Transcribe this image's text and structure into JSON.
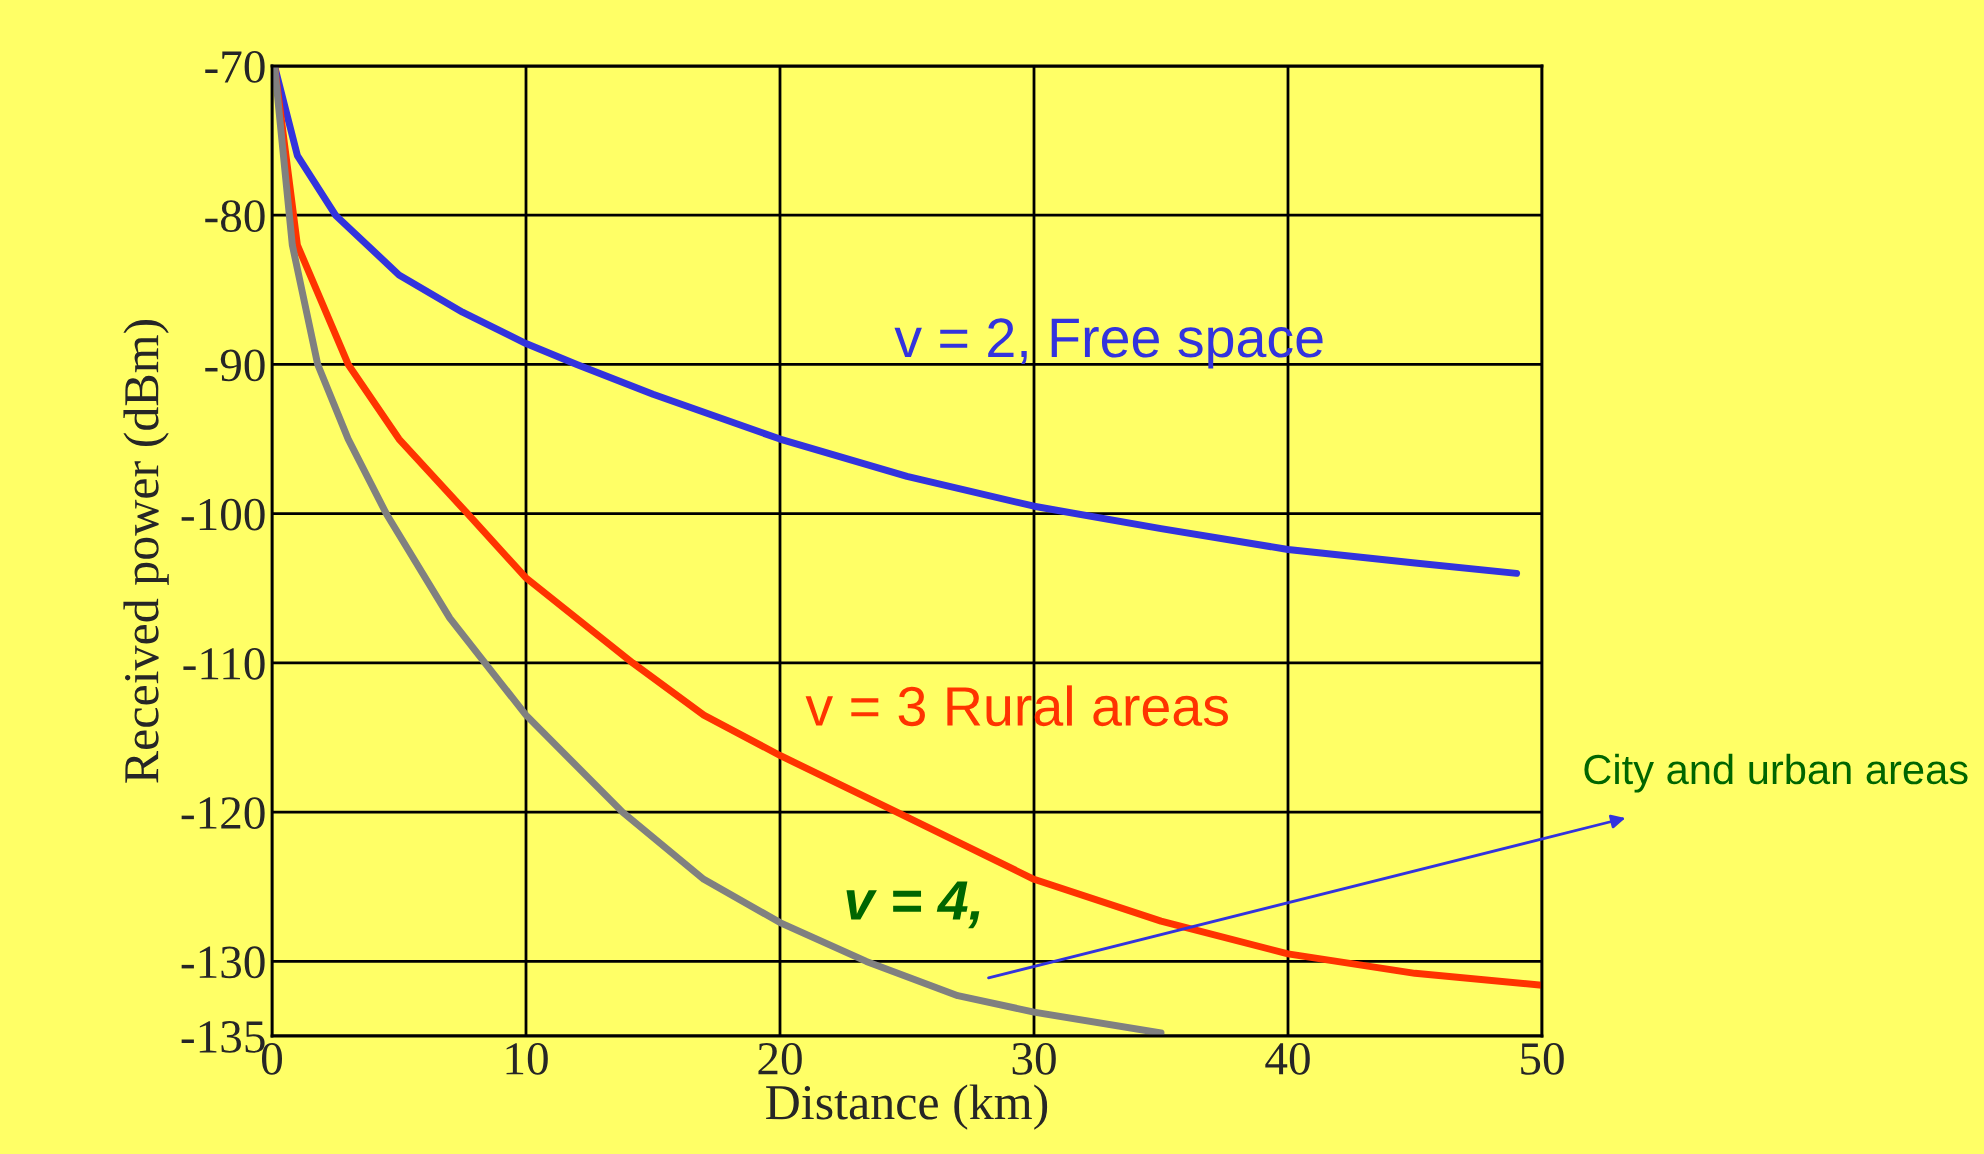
{
  "chart_data": {
    "type": "line",
    "xlabel": "Distance (km)",
    "ylabel": "Received power (dBm)",
    "xlim": [
      0,
      50
    ],
    "xticks": [
      0,
      10,
      20,
      30,
      40,
      50
    ],
    "ylim": [
      -135,
      -70
    ],
    "yticks": [
      -70,
      -80,
      -90,
      -100,
      -110,
      -120,
      -130,
      -135
    ],
    "grid": true,
    "legend": false,
    "series": [
      {
        "name": "v = 2, Free space",
        "color": "#3333dd",
        "x": [
          0.1,
          1,
          2.5,
          5,
          7.5,
          10,
          12,
          15,
          20,
          25,
          30,
          35,
          40,
          45,
          49
        ],
        "values": [
          -70,
          -76,
          -80,
          -84,
          -86.5,
          -88.6,
          -90,
          -92,
          -95,
          -97.5,
          -99.5,
          -101,
          -102.4,
          -103.3,
          -104
        ]
      },
      {
        "name": "v = 3 Rural areas",
        "color": "#ff3300",
        "x": [
          0.1,
          1,
          3,
          5,
          7.7,
          10,
          14.2,
          17,
          20,
          24.6,
          30,
          35,
          40,
          45,
          50
        ],
        "values": [
          -70,
          -82,
          -90,
          -95,
          -100,
          -104.3,
          -110,
          -113.5,
          -116.2,
          -120,
          -124.5,
          -127.3,
          -129.5,
          -130.8,
          -131.6
        ]
      },
      {
        "name": "v = 4,",
        "color": "#808080",
        "x": [
          0.1,
          0.8,
          1.8,
          3,
          4.5,
          7,
          10,
          13.8,
          17,
          20,
          23.4,
          27,
          30,
          35
        ],
        "values": [
          -70,
          -82,
          -90,
          -95,
          -100,
          -107,
          -113.5,
          -120,
          -124.5,
          -127.4,
          -130,
          -132.3,
          -133.4,
          -134.8
        ]
      }
    ],
    "annotations": [
      "City and urban areas"
    ]
  }
}
